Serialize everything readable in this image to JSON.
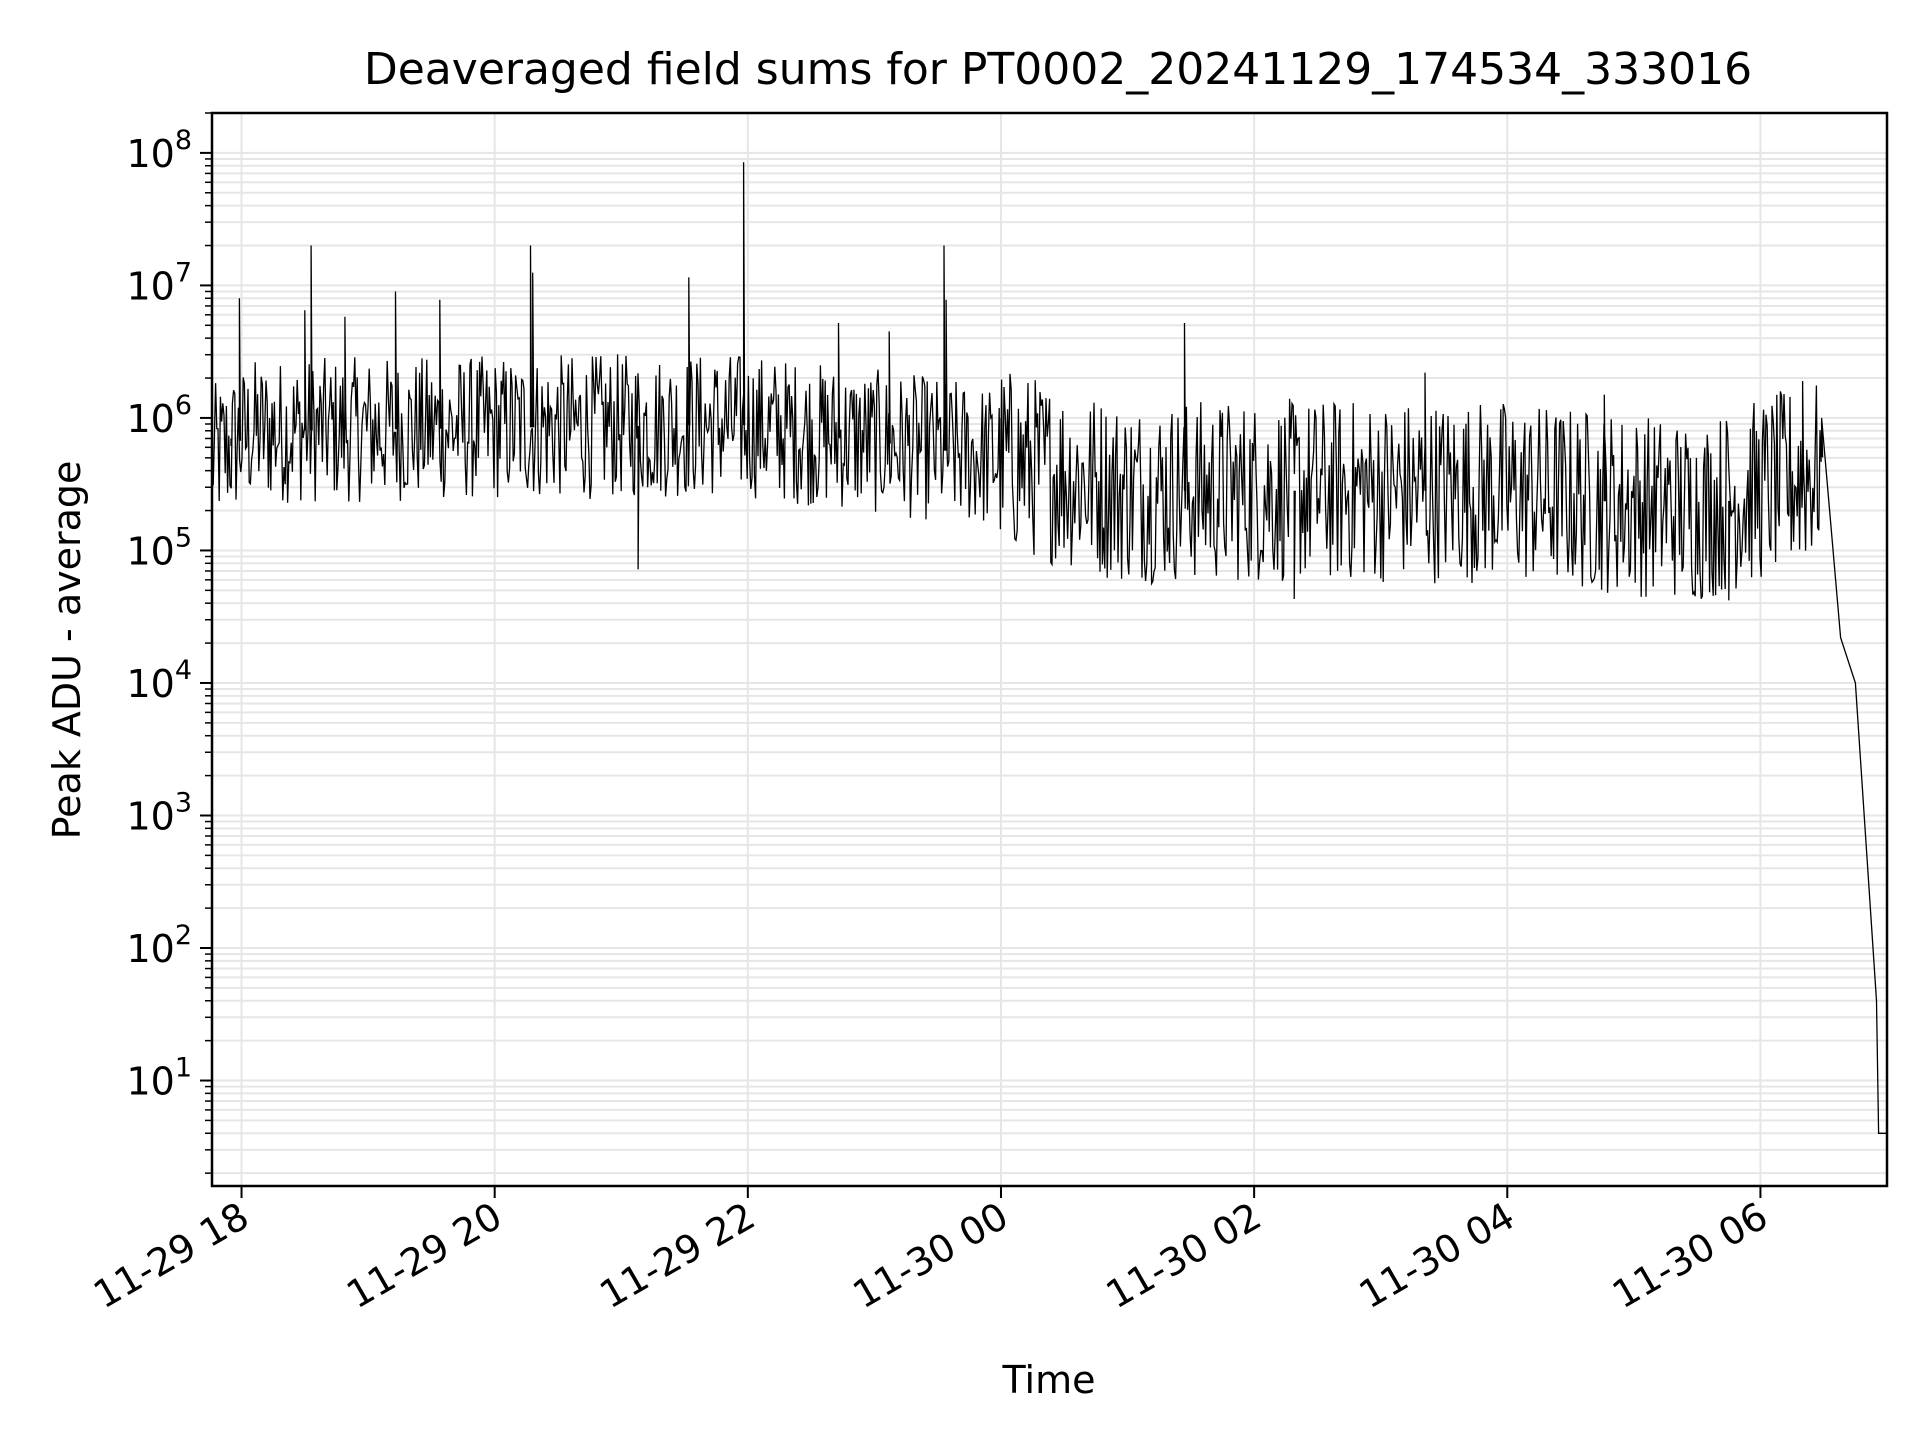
{
  "chart_data": {
    "type": "line",
    "title": "Deaveraged field sums for PT0002_20241129_174534_333016",
    "xlabel": "Time",
    "ylabel": "Peak ADU - average",
    "yscale": "log",
    "ylim": [
      1.6,
      200000000
    ],
    "xlim": [
      "2024-11-29 17:46",
      "2024-11-30 07:00"
    ],
    "grid": "on (major and minor)",
    "line_color": "#000000",
    "grid_color": "#e6e6e6",
    "x_ticks": [
      {
        "t": "2024-11-29 18:00",
        "label": "11-29 18"
      },
      {
        "t": "2024-11-29 20:00",
        "label": "11-29 20"
      },
      {
        "t": "2024-11-29 22:00",
        "label": "11-29 22"
      },
      {
        "t": "2024-11-30 00:00",
        "label": "11-30 00"
      },
      {
        "t": "2024-11-30 02:00",
        "label": "11-30 02"
      },
      {
        "t": "2024-11-30 04:00",
        "label": "11-30 04"
      },
      {
        "t": "2024-11-30 06:00",
        "label": "11-30 06"
      }
    ],
    "y_ticks": [
      {
        "value": 10,
        "base": "10",
        "exp": "1"
      },
      {
        "value": 100,
        "base": "10",
        "exp": "2"
      },
      {
        "value": 1000,
        "base": "10",
        "exp": "3"
      },
      {
        "value": 10000,
        "base": "10",
        "exp": "4"
      },
      {
        "value": 100000,
        "base": "10",
        "exp": "5"
      },
      {
        "value": 1000000,
        "base": "10",
        "exp": "6"
      },
      {
        "value": 10000000,
        "base": "10",
        "exp": "7"
      },
      {
        "value": 100000000,
        "base": "10",
        "exp": "8"
      }
    ],
    "series": [
      {
        "points": [
          [
            "2024-11-29 17:46",
            500000
          ],
          [
            "2024-11-29 17:55",
            700000
          ],
          [
            "2024-11-29 17:59",
            8000000
          ],
          [
            "2024-11-29 18:30",
            6500000
          ],
          [
            "2024-11-29 18:33",
            20000000
          ],
          [
            "2024-11-29 18:49",
            5800000
          ],
          [
            "2024-11-29 19:13",
            9000000
          ],
          [
            "2024-11-29 19:34",
            7800000
          ],
          [
            "2024-11-29 20:18",
            3100000
          ],
          [
            "2024-11-29 20:17",
            20000000
          ],
          [
            "2024-11-29 20:18",
            12500000
          ],
          [
            "2024-11-29 21:08",
            72000
          ],
          [
            "2024-11-29 21:32",
            11500000
          ],
          [
            "2024-11-29 21:58",
            85000000
          ],
          [
            "2024-11-29 22:43",
            5200000
          ],
          [
            "2024-11-29 23:07",
            4500000
          ],
          [
            "2024-11-29 23:33",
            20000000
          ],
          [
            "2024-11-29 23:34",
            7800000
          ],
          [
            "2024-11-30 00:00",
            1000000
          ],
          [
            "2024-11-30 01:27",
            5200000
          ],
          [
            "2024-11-30 02:19",
            43000
          ],
          [
            "2024-11-30 03:21",
            2200000
          ],
          [
            "2024-11-30 04:46",
            1500000
          ],
          [
            "2024-11-30 05:45",
            42000
          ],
          [
            "2024-11-30 06:20",
            1900000
          ],
          [
            "2024-11-30 06:29",
            1000000
          ],
          [
            "2024-11-30 06:38",
            22000
          ],
          [
            "2024-11-30 06:45",
            10000
          ],
          [
            "2024-11-30 06:55",
            40
          ],
          [
            "2024-11-30 06:56",
            4
          ],
          [
            "2024-11-30 07:00",
            4
          ]
        ]
      }
    ]
  }
}
